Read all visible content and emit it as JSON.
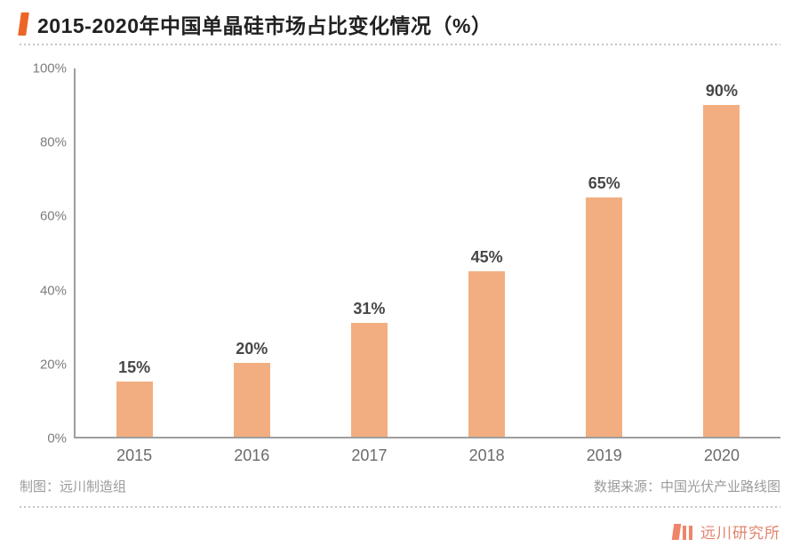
{
  "header": {
    "title": "2015-2020年中国单晶硅市场占比变化情况（%）"
  },
  "chart_data": {
    "type": "bar",
    "title": "2015-2020年中国单晶硅市场占比变化情况（%）",
    "categories": [
      "2015",
      "2016",
      "2017",
      "2018",
      "2019",
      "2020"
    ],
    "values": [
      15,
      20,
      31,
      45,
      65,
      90
    ],
    "value_label_suffix": "%",
    "xlabel": "",
    "ylabel": "",
    "ylim": [
      0,
      100
    ],
    "yticks": [
      0,
      20,
      40,
      60,
      80,
      100
    ],
    "ytick_suffix": "%",
    "grid": false,
    "legend_position": "none",
    "bar_color": "#f2ae80"
  },
  "footer": {
    "credit": "制图：远川制造组",
    "source": "数据来源：中国光伏产业路线图",
    "brand": "远川研究所"
  },
  "colors": {
    "accent_orange": "#ec6426",
    "bar_fill": "#f2ae80",
    "logo_salmon": "#f0846a",
    "brand_text": "#e2846c",
    "axis_line": "#9e9e9e",
    "tick_text": "#7d7d7d",
    "footer_text": "#9b9b9b"
  }
}
